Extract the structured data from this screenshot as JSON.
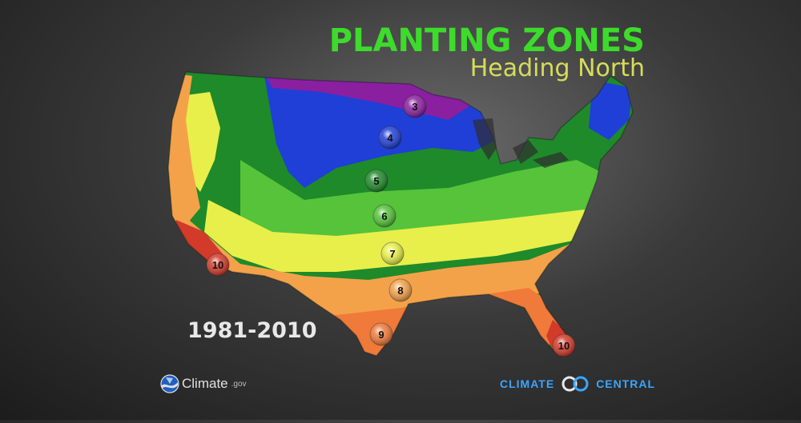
{
  "title": {
    "line1": "PLANTING ZONES",
    "line2": "Heading North"
  },
  "period": "1981-2010",
  "logos": {
    "noaa": {
      "name": "Climate",
      "suffix": ".gov",
      "icon": "noaa-icon"
    },
    "climate_central": {
      "left": "CLIMATE",
      "right": "CENTRAL",
      "icon": "climate-central-rings-icon"
    }
  },
  "zone_colors": {
    "3": "#8a1fa0",
    "4": "#1f3fd6",
    "5": "#1f8a2a",
    "6": "#56c33a",
    "7": "#e8ef4a",
    "8": "#f4a24a",
    "9": "#f07a3a",
    "10": "#d23a2a"
  },
  "markers": [
    {
      "zone": "3",
      "label": "3"
    },
    {
      "zone": "4",
      "label": "4"
    },
    {
      "zone": "5",
      "label": "5"
    },
    {
      "zone": "6",
      "label": "6"
    },
    {
      "zone": "7",
      "label": "7"
    },
    {
      "zone": "8",
      "label": "8"
    },
    {
      "zone": "10",
      "label": "10"
    },
    {
      "zone": "9",
      "label": "9"
    },
    {
      "zone": "10",
      "label": "10"
    }
  ]
}
